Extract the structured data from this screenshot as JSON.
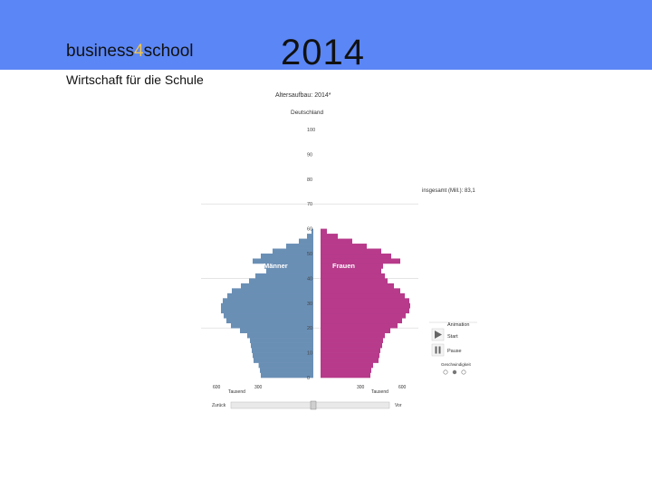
{
  "header": {
    "brand_prefix": "business",
    "brand_digit": "4",
    "brand_suffix": "school",
    "tagline": "Wirtschaft für die Schule",
    "year": "2014",
    "band_color": "#5b86f5",
    "accent_color": "#f2c44a"
  },
  "chart_data": {
    "type": "bar",
    "orientation": "horizontal-pyramid",
    "title": "Altersaufbau: 2014*",
    "subtitle": "Deutschland",
    "total_label": "insgesamt (Mill.): 83,1",
    "y_ticks": [
      "0",
      "10",
      "20",
      "30",
      "40",
      "50",
      "60",
      "70",
      "80",
      "90",
      "100"
    ],
    "ylim": [
      0,
      100
    ],
    "x_ticks_left": [
      "600",
      "300"
    ],
    "x_ticks_right": [
      "300",
      "600"
    ],
    "x_unit_left": "Tausend",
    "x_unit_right": "Tausend",
    "xlim": [
      0,
      600
    ],
    "age_step": 2,
    "series": [
      {
        "name": "Männer",
        "color": "#6a8fb5",
        "values": [
          290,
          295,
          302,
          330,
          335,
          340,
          345,
          350,
          365,
          405,
          455,
          480,
          495,
          510,
          510,
          500,
          475,
          450,
          400,
          355,
          320,
          260,
          270,
          335,
          290,
          225,
          150,
          80,
          35,
          10
        ]
      },
      {
        "name": "Frauen",
        "color": "#b73a8b",
        "values": [
          275,
          280,
          290,
          320,
          325,
          330,
          340,
          345,
          355,
          385,
          425,
          450,
          470,
          490,
          495,
          490,
          465,
          440,
          405,
          370,
          355,
          335,
          345,
          440,
          390,
          335,
          255,
          175,
          95,
          35
        ]
      }
    ]
  },
  "animation_panel": {
    "title": "Animation",
    "start_label": "Start",
    "pause_label": "Pause",
    "speed_label": "Geschwindigkeit"
  },
  "slider": {
    "back_label": "Zurück",
    "forward_label": "Vor",
    "position": 0.52
  }
}
